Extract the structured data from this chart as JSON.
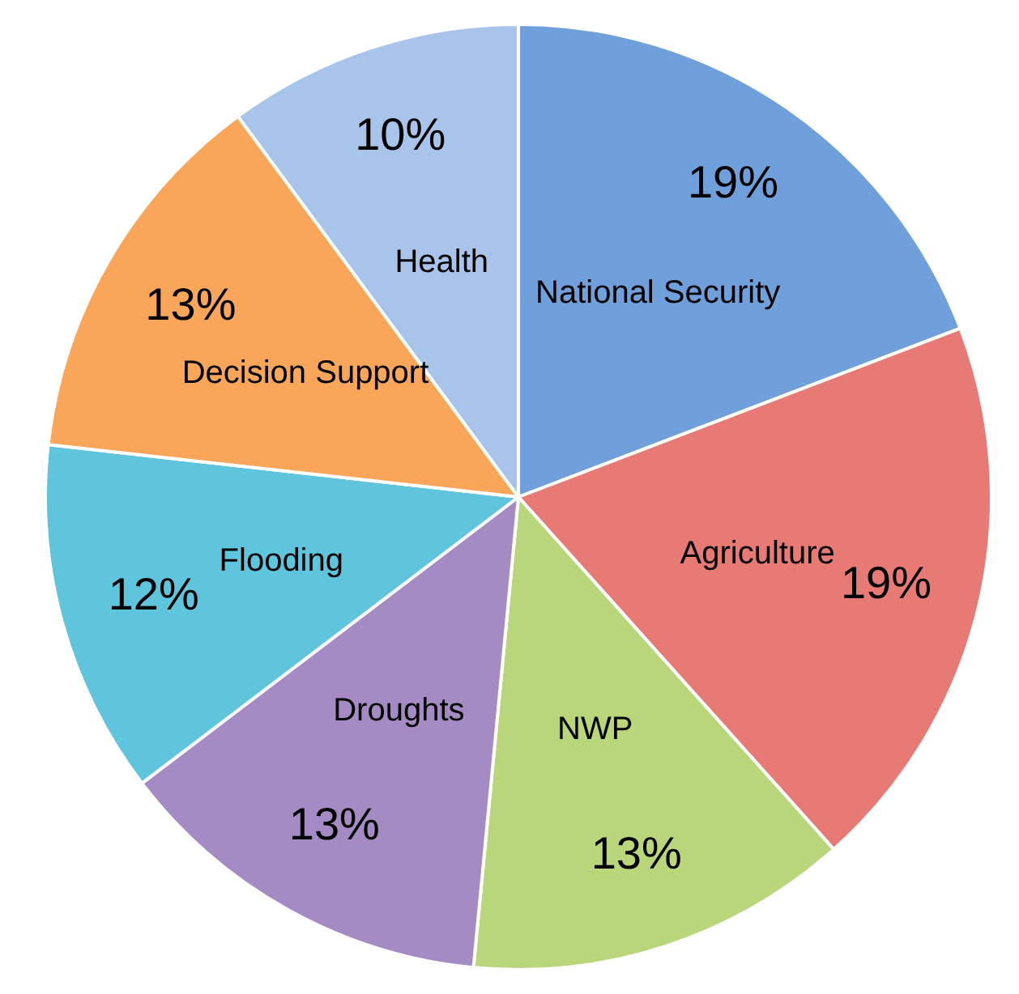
{
  "chart_data": {
    "type": "pie",
    "categories": [
      "National Security",
      "Agriculture",
      "NWP",
      "Droughts",
      "Flooding",
      "Decision Support",
      "Health"
    ],
    "values": [
      19,
      19,
      13,
      13,
      12,
      13,
      10
    ],
    "value_labels": [
      "19%",
      "19%",
      "13%",
      "13%",
      "12%",
      "13%",
      "10%"
    ],
    "colors": [
      "#6fa0dc",
      "#e87a75",
      "#b9d77a",
      "#a58bc4",
      "#5fc5dd",
      "#f9a65a",
      "#a9c4ea"
    ]
  }
}
